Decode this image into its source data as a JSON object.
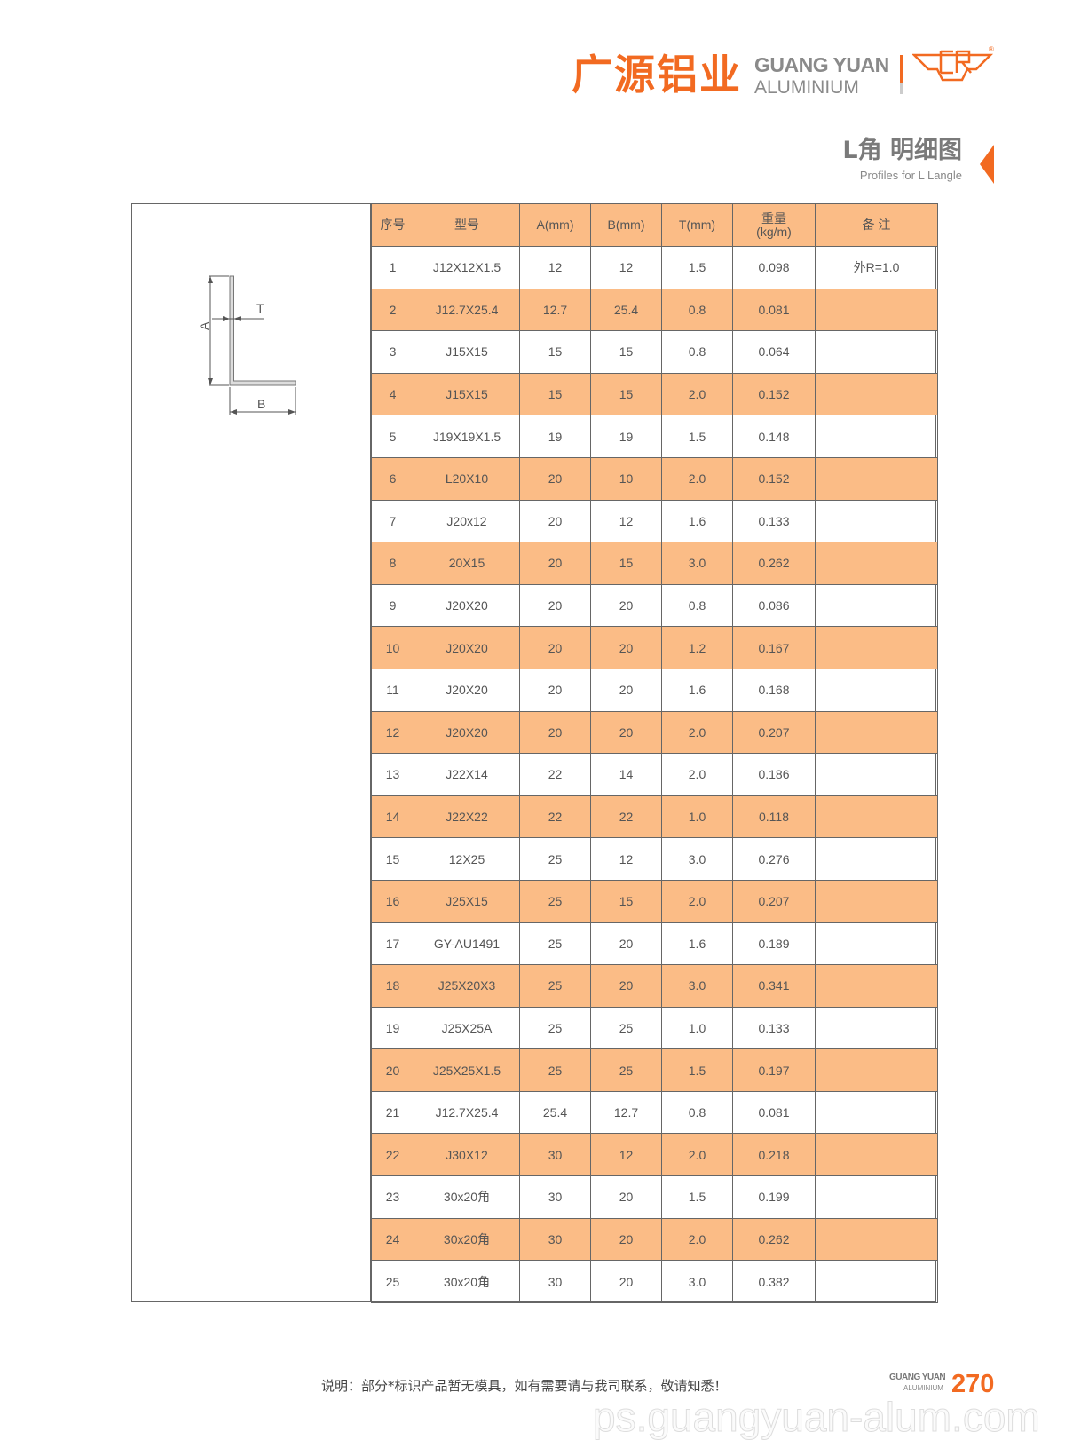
{
  "colors": {
    "brand_orange": "#F26A21",
    "row_highlight": "#FBBC86",
    "text_gray": "#555555"
  },
  "header": {
    "logo_cn": "广源铝业",
    "logo_en_line1": "GUANG YUAN",
    "logo_en_line2": "ALUMINIUM",
    "logo_mark": "CR",
    "registered": "®"
  },
  "section": {
    "title": "L角 明细图",
    "subtitle": "Profiles for L Langle",
    "marker_icon": "triangle-left-icon"
  },
  "diagram": {
    "label_a": "A",
    "label_b": "B",
    "label_t": "T"
  },
  "table": {
    "columns": [
      "序号",
      "型号",
      "A(mm)",
      "B(mm)",
      "T(mm)",
      "重量\n(kg/m)",
      "备 注"
    ],
    "rows": [
      [
        "1",
        "J12X12X1.5",
        "12",
        "12",
        "1.5",
        "0.098",
        "外R=1.0"
      ],
      [
        "2",
        "J12.7X25.4",
        "12.7",
        "25.4",
        "0.8",
        "0.081",
        ""
      ],
      [
        "3",
        "J15X15",
        "15",
        "15",
        "0.8",
        "0.064",
        ""
      ],
      [
        "4",
        "J15X15",
        "15",
        "15",
        "2.0",
        "0.152",
        ""
      ],
      [
        "5",
        "J19X19X1.5",
        "19",
        "19",
        "1.5",
        "0.148",
        ""
      ],
      [
        "6",
        "L20X10",
        "20",
        "10",
        "2.0",
        "0.152",
        ""
      ],
      [
        "7",
        "J20x12",
        "20",
        "12",
        "1.6",
        "0.133",
        ""
      ],
      [
        "8",
        "20X15",
        "20",
        "15",
        "3.0",
        "0.262",
        ""
      ],
      [
        "9",
        "J20X20",
        "20",
        "20",
        "0.8",
        "0.086",
        ""
      ],
      [
        "10",
        "J20X20",
        "20",
        "20",
        "1.2",
        "0.167",
        ""
      ],
      [
        "11",
        "J20X20",
        "20",
        "20",
        "1.6",
        "0.168",
        ""
      ],
      [
        "12",
        "J20X20",
        "20",
        "20",
        "2.0",
        "0.207",
        ""
      ],
      [
        "13",
        "J22X14",
        "22",
        "14",
        "2.0",
        "0.186",
        ""
      ],
      [
        "14",
        "J22X22",
        "22",
        "22",
        "1.0",
        "0.118",
        ""
      ],
      [
        "15",
        "12X25",
        "25",
        "12",
        "3.0",
        "0.276",
        ""
      ],
      [
        "16",
        "J25X15",
        "25",
        "15",
        "2.0",
        "0.207",
        ""
      ],
      [
        "17",
        "GY-AU1491",
        "25",
        "20",
        "1.6",
        "0.189",
        ""
      ],
      [
        "18",
        "J25X20X3",
        "25",
        "20",
        "3.0",
        "0.341",
        ""
      ],
      [
        "19",
        "J25X25A",
        "25",
        "25",
        "1.0",
        "0.133",
        ""
      ],
      [
        "20",
        "J25X25X1.5",
        "25",
        "25",
        "1.5",
        "0.197",
        ""
      ],
      [
        "21",
        "J12.7X25.4",
        "25.4",
        "12.7",
        "0.8",
        "0.081",
        ""
      ],
      [
        "22",
        "J30X12",
        "30",
        "12",
        "2.0",
        "0.218",
        ""
      ],
      [
        "23",
        "30x20角",
        "30",
        "20",
        "1.5",
        "0.199",
        ""
      ],
      [
        "24",
        "30x20角",
        "30",
        "20",
        "2.0",
        "0.262",
        ""
      ],
      [
        "25",
        "30x20角",
        "30",
        "20",
        "3.0",
        "0.382",
        ""
      ]
    ]
  },
  "footer": {
    "note": "说明：部分*标识产品暂无模具，如有需要请与我司联系，敬请知悉！",
    "brand_line1": "GUANG YUAN",
    "brand_line2": "ALUMINIUM",
    "page_number": "270",
    "watermark": "ps.guangyuan-alum.com"
  }
}
